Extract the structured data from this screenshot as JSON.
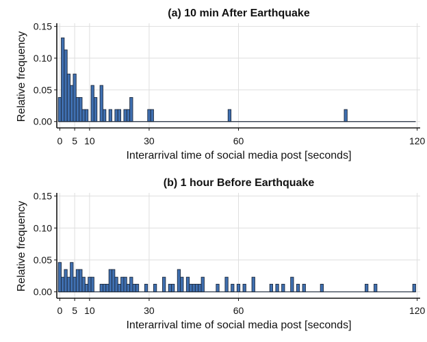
{
  "chart_data": [
    {
      "type": "bar",
      "title": "(a) 10 min After Earthquake",
      "xlabel": "Interarrival time of social media post [seconds]",
      "ylabel": "Relative frequency",
      "xlim": [
        -1,
        121
      ],
      "ylim": [
        -0.01,
        0.155
      ],
      "xticks": [
        0,
        5,
        10,
        30,
        60,
        120
      ],
      "yticks": [
        0.0,
        0.05,
        0.1,
        0.15
      ],
      "ytick_labels": [
        "0.00",
        "0.05",
        "0.10",
        "0.15"
      ],
      "grid": true,
      "colors": {
        "bar": "#3f6fb0",
        "edge": "#1e2a3d"
      },
      "x": [
        0,
        1,
        2,
        3,
        4,
        5,
        6,
        7,
        8,
        9,
        10,
        11,
        12,
        13,
        14,
        15,
        16,
        17,
        18,
        19,
        20,
        21,
        22,
        23,
        24,
        30,
        31,
        57,
        96
      ],
      "values": [
        0.038,
        0.132,
        0.113,
        0.075,
        0.057,
        0.075,
        0.038,
        0.038,
        0.019,
        0.019,
        0.0,
        0.057,
        0.038,
        0.0,
        0.057,
        0.019,
        0.0,
        0.019,
        0.0,
        0.019,
        0.019,
        0.0,
        0.019,
        0.019,
        0.038,
        0.019,
        0.019,
        0.019,
        0.019
      ]
    },
    {
      "type": "bar",
      "title": "(b) 1 hour Before Earthquake",
      "xlabel": "Interarrival time of social media post [seconds]",
      "ylabel": "Relative frequency",
      "xlim": [
        -1,
        121
      ],
      "ylim": [
        -0.01,
        0.155
      ],
      "xticks": [
        0,
        5,
        10,
        30,
        60,
        120
      ],
      "yticks": [
        0.0,
        0.05,
        0.1,
        0.15
      ],
      "ytick_labels": [
        "0.00",
        "0.05",
        "0.10",
        "0.15"
      ],
      "grid": true,
      "colors": {
        "bar": "#3f6fb0",
        "edge": "#1e2a3d"
      },
      "x": [
        0,
        1,
        2,
        3,
        4,
        5,
        6,
        7,
        8,
        9,
        10,
        11,
        14,
        15,
        16,
        17,
        18,
        19,
        20,
        21,
        22,
        23,
        24,
        25,
        26,
        29,
        32,
        35,
        37,
        38,
        40,
        41,
        43,
        44,
        45,
        46,
        47,
        48,
        53,
        56,
        58,
        60,
        62,
        65,
        71,
        73,
        75,
        78,
        80,
        82,
        88,
        103,
        106,
        119
      ],
      "values": [
        0.046,
        0.023,
        0.035,
        0.023,
        0.046,
        0.023,
        0.035,
        0.035,
        0.023,
        0.012,
        0.023,
        0.023,
        0.012,
        0.012,
        0.012,
        0.035,
        0.035,
        0.023,
        0.012,
        0.023,
        0.023,
        0.012,
        0.023,
        0.012,
        0.012,
        0.012,
        0.012,
        0.023,
        0.012,
        0.012,
        0.035,
        0.023,
        0.023,
        0.012,
        0.012,
        0.012,
        0.012,
        0.023,
        0.012,
        0.023,
        0.012,
        0.012,
        0.012,
        0.023,
        0.012,
        0.012,
        0.012,
        0.023,
        0.012,
        0.012,
        0.012,
        0.012,
        0.012,
        0.012
      ]
    }
  ]
}
